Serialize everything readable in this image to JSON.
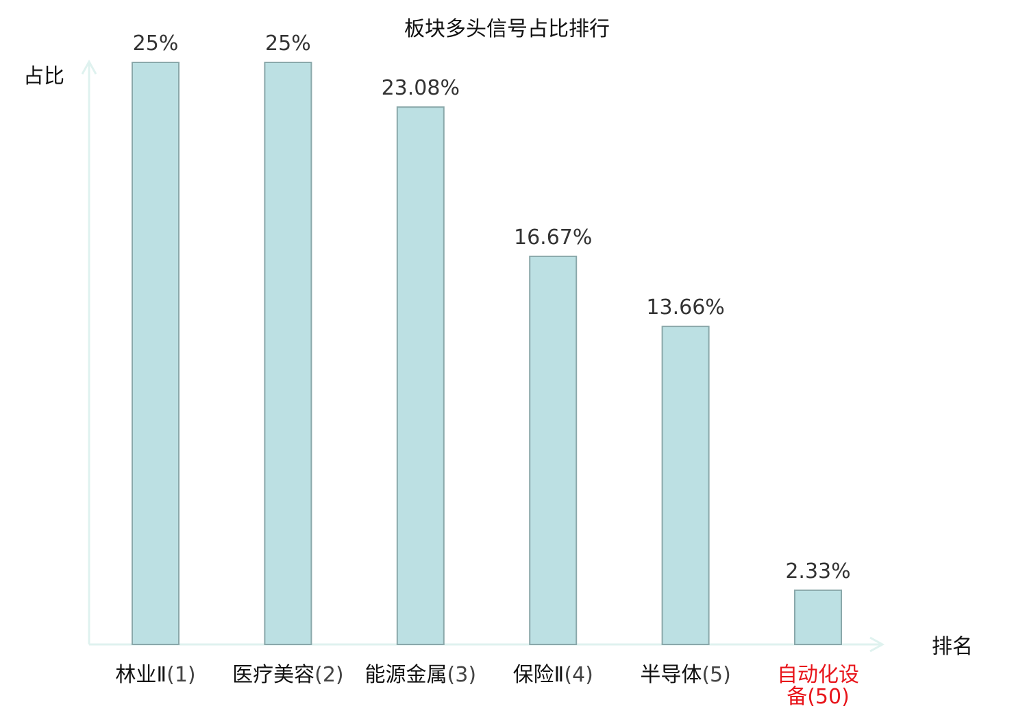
{
  "chart_data": {
    "type": "bar",
    "title": "板块多头信号占比排行",
    "ylabel": "占比",
    "xlabel": "排名",
    "ylim": [
      0,
      25
    ],
    "grid": false,
    "legend": "none",
    "categories": [
      {
        "name": "林业Ⅱ",
        "rank": "(1)",
        "highlight": false
      },
      {
        "name": "医疗美容",
        "rank": "(2)",
        "highlight": false
      },
      {
        "name": "能源金属",
        "rank": "(3)",
        "highlight": false
      },
      {
        "name": "保险Ⅱ",
        "rank": "(4)",
        "highlight": false
      },
      {
        "name": "半导体",
        "rank": "(5)",
        "highlight": false
      },
      {
        "name": "自动化设",
        "name_line2": "备",
        "rank": "(50)",
        "highlight": true
      }
    ],
    "values": [
      25,
      25,
      23.08,
      16.67,
      13.66,
      2.33
    ],
    "value_labels": [
      "25%",
      "25%",
      "23.08%",
      "16.67%",
      "13.66%",
      "2.33%"
    ],
    "colors": {
      "bar_fill": "#bce0e3",
      "bar_stroke": "#8aa8aa",
      "axis": "#dff2ef",
      "highlight_text": "#e8151b"
    }
  }
}
